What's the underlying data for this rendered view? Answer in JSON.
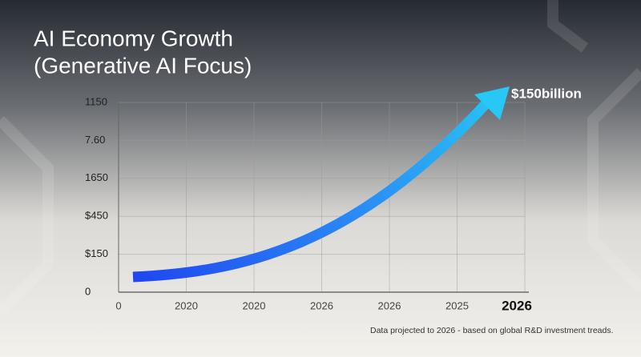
{
  "title": {
    "line1": "AI Economy Growth",
    "line2": "(Generative AI Focus)"
  },
  "y_axis_labels": [
    "1150",
    "7.60",
    "1650",
    "$450",
    "$150",
    "0"
  ],
  "x_axis_labels": [
    "0",
    "2020",
    "2020",
    "2026",
    "2026",
    "2025",
    "2026"
  ],
  "annotation": "$150billion",
  "footnote": "Data projected to 2026 - based on global R&D investment treads."
}
